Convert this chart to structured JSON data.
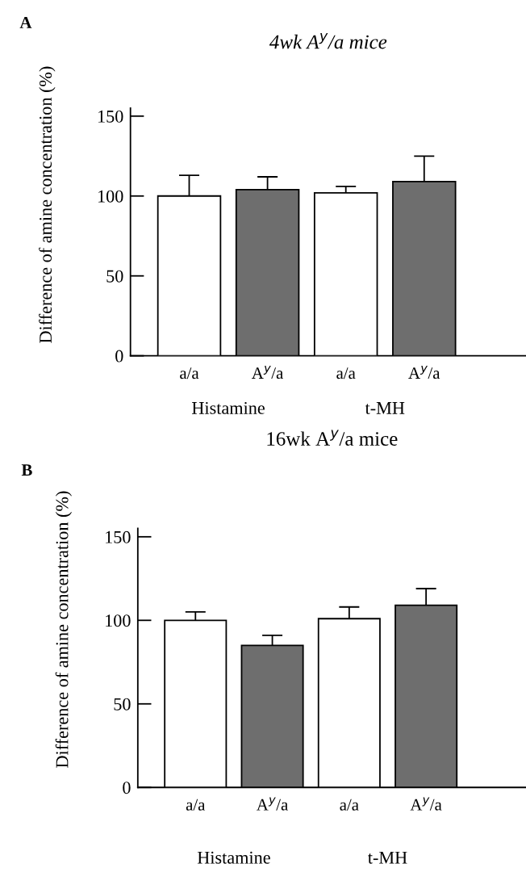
{
  "chart_data": [
    {
      "type": "bar",
      "title": "4wk A$^{y}$/a mice",
      "ylabel": "Difference of amine concentration (%)",
      "categories": [
        "a/a",
        "A$^{y}$/a",
        "a/a",
        "A$^{y}$/a"
      ],
      "values": [
        100,
        104,
        102,
        109
      ],
      "errors": [
        13,
        8,
        4,
        16
      ],
      "colors": [
        "#ffffff",
        "#6e6e6e",
        "#ffffff",
        "#6e6e6e"
      ],
      "ylim": [
        0,
        155
      ],
      "yticks": [
        0,
        50,
        100,
        150
      ],
      "annotations": [
        "A",
        "Histamine",
        "t-MH"
      ]
    },
    {
      "type": "bar",
      "title": "16wk A$^{y}$/a mice",
      "ylabel": "Difference of amine concentration (%)",
      "categories": [
        "a/a",
        "A$^{y}$/a",
        "a/a",
        "A$^{y}$/a"
      ],
      "values": [
        100,
        85,
        101,
        109
      ],
      "errors": [
        5,
        6,
        7,
        10
      ],
      "colors": [
        "#ffffff",
        "#6e6e6e",
        "#ffffff",
        "#6e6e6e"
      ],
      "ylim": [
        0,
        155
      ],
      "yticks": [
        0,
        50,
        100,
        150
      ],
      "annotations": [
        "B",
        "Histamine",
        "t-MH"
      ]
    }
  ]
}
